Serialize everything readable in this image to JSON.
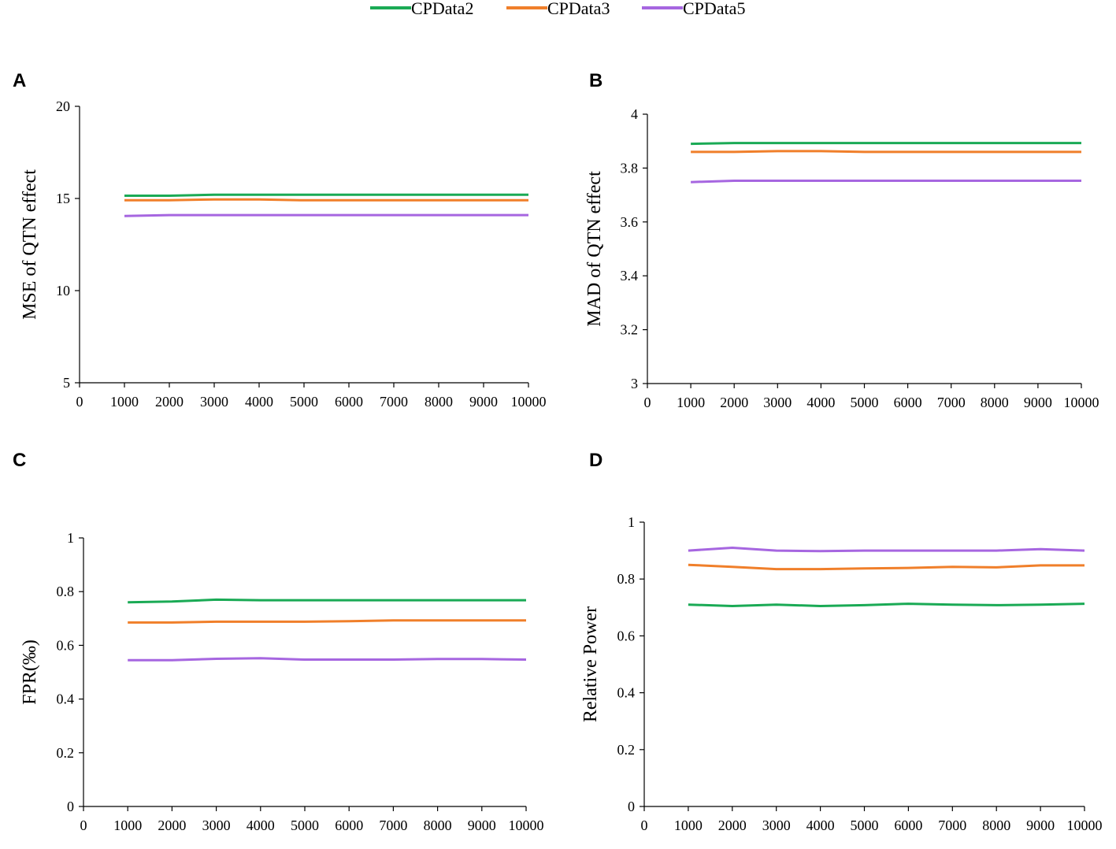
{
  "legend": [
    {
      "name": "CPData2",
      "color": "#1aaa55"
    },
    {
      "name": "CPData3",
      "color": "#f07f2a"
    },
    {
      "name": "CPData5",
      "color": "#a666e0"
    }
  ],
  "chart_data": [
    {
      "panel": "A",
      "type": "line",
      "ylabel": "MSE of QTN effect",
      "x": [
        1000,
        2000,
        3000,
        4000,
        5000,
        6000,
        7000,
        8000,
        9000,
        10000
      ],
      "x_ticks": [
        "0",
        "1000",
        "2000",
        "3000",
        "4000",
        "5000",
        "6000",
        "7000",
        "8000",
        "9000",
        "10000"
      ],
      "ylim": [
        5,
        20
      ],
      "y_ticks": [
        "5",
        "10",
        "15",
        "20"
      ],
      "series": [
        {
          "name": "CPData2",
          "values": [
            15.15,
            15.15,
            15.2,
            15.2,
            15.2,
            15.2,
            15.2,
            15.2,
            15.2,
            15.2
          ]
        },
        {
          "name": "CPData3",
          "values": [
            14.9,
            14.9,
            14.95,
            14.95,
            14.9,
            14.9,
            14.9,
            14.9,
            14.9,
            14.9
          ]
        },
        {
          "name": "CPData5",
          "values": [
            14.05,
            14.1,
            14.1,
            14.1,
            14.1,
            14.1,
            14.1,
            14.1,
            14.1,
            14.1
          ]
        }
      ]
    },
    {
      "panel": "B",
      "type": "line",
      "ylabel": "MAD of QTN effect",
      "x": [
        1000,
        2000,
        3000,
        4000,
        5000,
        6000,
        7000,
        8000,
        9000,
        10000
      ],
      "x_ticks": [
        "0",
        "1000",
        "2000",
        "3000",
        "4000",
        "5000",
        "6000",
        "7000",
        "8000",
        "9000",
        "10000"
      ],
      "ylim": [
        3,
        4
      ],
      "y_ticks": [
        "3",
        "3.2",
        "3.4",
        "3.6",
        "3.8",
        "4"
      ],
      "series": [
        {
          "name": "CPData2",
          "values": [
            3.89,
            3.893,
            3.893,
            3.893,
            3.893,
            3.893,
            3.893,
            3.893,
            3.893,
            3.893
          ]
        },
        {
          "name": "CPData3",
          "values": [
            3.86,
            3.86,
            3.863,
            3.863,
            3.86,
            3.86,
            3.86,
            3.86,
            3.86,
            3.86
          ]
        },
        {
          "name": "CPData5",
          "values": [
            3.748,
            3.753,
            3.753,
            3.753,
            3.753,
            3.753,
            3.753,
            3.753,
            3.753,
            3.753
          ]
        }
      ]
    },
    {
      "panel": "C",
      "type": "line",
      "ylabel": "FPR(‰)",
      "x": [
        1000,
        2000,
        3000,
        4000,
        5000,
        6000,
        7000,
        8000,
        9000,
        10000
      ],
      "x_ticks": [
        "0",
        "1000",
        "2000",
        "3000",
        "4000",
        "5000",
        "6000",
        "7000",
        "8000",
        "9000",
        "10000"
      ],
      "ylim": [
        0,
        1
      ],
      "y_ticks": [
        "0",
        "0.2",
        "0.4",
        "0.6",
        "0.8",
        "1"
      ],
      "series": [
        {
          "name": "CPData2",
          "values": [
            0.76,
            0.763,
            0.77,
            0.768,
            0.768,
            0.768,
            0.768,
            0.768,
            0.768,
            0.768
          ]
        },
        {
          "name": "CPData3",
          "values": [
            0.685,
            0.685,
            0.688,
            0.688,
            0.688,
            0.69,
            0.693,
            0.693,
            0.693,
            0.693
          ]
        },
        {
          "name": "CPData5",
          "values": [
            0.545,
            0.545,
            0.55,
            0.552,
            0.547,
            0.547,
            0.547,
            0.549,
            0.549,
            0.547
          ]
        }
      ]
    },
    {
      "panel": "D",
      "type": "line",
      "ylabel": "Relative Power",
      "x": [
        1000,
        2000,
        3000,
        4000,
        5000,
        6000,
        7000,
        8000,
        9000,
        10000
      ],
      "x_ticks": [
        "0",
        "1000",
        "2000",
        "3000",
        "4000",
        "5000",
        "6000",
        "7000",
        "8000",
        "9000",
        "10000"
      ],
      "ylim": [
        0,
        1
      ],
      "y_ticks": [
        "0",
        "0.2",
        "0.4",
        "0.6",
        "0.8",
        "1"
      ],
      "series": [
        {
          "name": "CPData2",
          "values": [
            0.71,
            0.705,
            0.71,
            0.705,
            0.708,
            0.713,
            0.71,
            0.708,
            0.71,
            0.713
          ]
        },
        {
          "name": "CPData3",
          "values": [
            0.85,
            0.843,
            0.835,
            0.835,
            0.837,
            0.839,
            0.843,
            0.841,
            0.848,
            0.848
          ]
        },
        {
          "name": "CPData5",
          "values": [
            0.9,
            0.91,
            0.9,
            0.898,
            0.9,
            0.9,
            0.9,
            0.9,
            0.905,
            0.9
          ]
        }
      ]
    }
  ]
}
